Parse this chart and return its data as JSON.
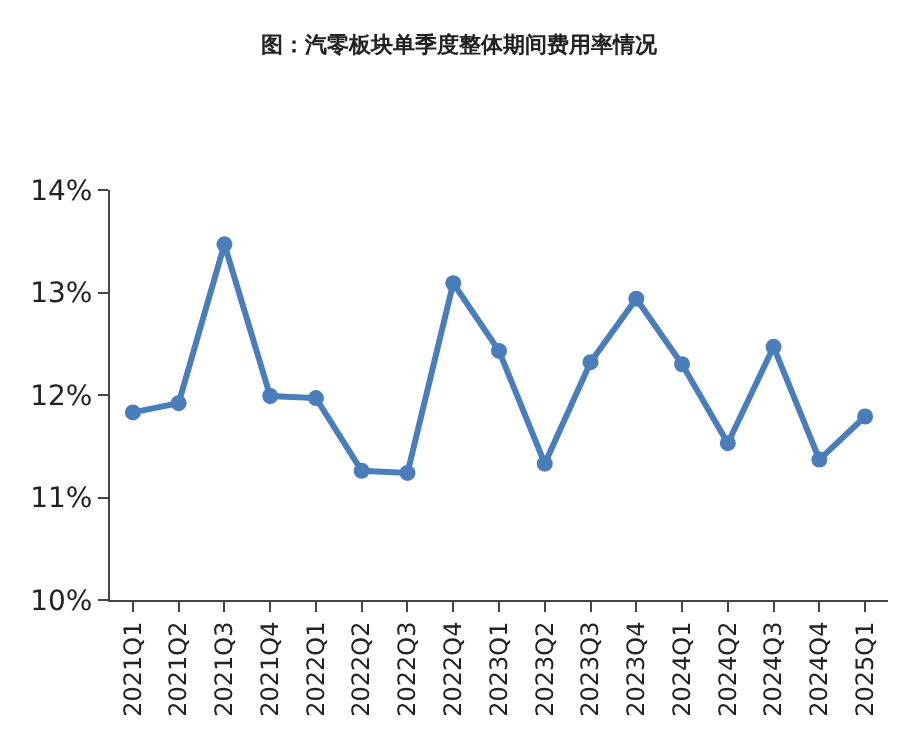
{
  "chart_data": {
    "type": "line",
    "title": "图：汽零板块单季度整体期间费用率情况",
    "categories": [
      "2021Q1",
      "2021Q2",
      "2021Q3",
      "2021Q4",
      "2022Q1",
      "2022Q2",
      "2022Q3",
      "2022Q4",
      "2023Q1",
      "2023Q2",
      "2023Q3",
      "2023Q4",
      "2024Q1",
      "2024Q2",
      "2024Q3",
      "2024Q4",
      "2025Q1"
    ],
    "series": [
      {
        "color": "#4a7ebb",
        "values": [
          11.83,
          11.92,
          13.47,
          11.99,
          11.97,
          11.26,
          11.24,
          13.09,
          12.43,
          11.33,
          12.32,
          12.94,
          12.3,
          11.53,
          12.47,
          11.37,
          11.79
        ]
      }
    ],
    "ylim": [
      10,
      14
    ],
    "yticks": [
      {
        "value": 10,
        "label": "10%"
      },
      {
        "value": 11,
        "label": "11%"
      },
      {
        "value": 12,
        "label": "12%"
      },
      {
        "value": 13,
        "label": "13%"
      },
      {
        "value": 14,
        "label": "14%"
      }
    ],
    "marker": "circle",
    "line_style": "solid"
  }
}
